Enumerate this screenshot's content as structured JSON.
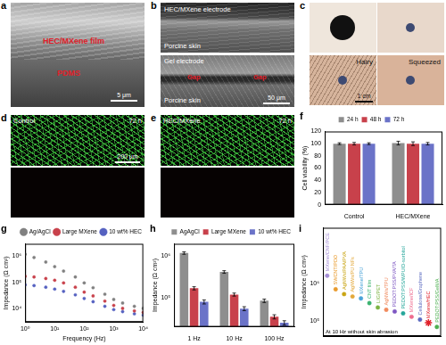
{
  "images": [
    {
      "panel": "a",
      "labels": [
        "HEC/MXene film",
        "PDMS"
      ],
      "scale_bar": "5 μm"
    },
    {
      "panel": "b",
      "labels": [
        "HEC/MXene electrode",
        "Porcine skin",
        "Gel electrode",
        "Gap",
        "Gap",
        "Porcine skin"
      ],
      "scale_bar": "50 μm"
    },
    {
      "panel": "c",
      "labels": [
        "Hairy",
        "Squeezed"
      ],
      "scale_bar": "1 cm"
    },
    {
      "panel": "d",
      "labels": [
        "Control",
        "72 h"
      ],
      "scale_bar": "200 μm"
    },
    {
      "panel": "e",
      "labels": [
        "HEC/MXene",
        "72 h"
      ]
    }
  ],
  "chart_data": [
    {
      "panel": "f",
      "type": "bar",
      "categories": [
        "Control",
        "HEC/MXene"
      ],
      "y_label": "Cell viability (%)",
      "ylim": [
        0,
        120
      ],
      "yticks": [
        0,
        20,
        40,
        60,
        80,
        100,
        120
      ],
      "legend": "top",
      "series": [
        {
          "name": "24 h",
          "color": "#8e8e8e",
          "values": [
            100,
            101
          ],
          "errors": [
            1.5,
            3
          ]
        },
        {
          "name": "48 h",
          "color": "#c8414b",
          "values": [
            100,
            100
          ],
          "errors": [
            2,
            3
          ]
        },
        {
          "name": "72 h",
          "color": "#6b73c8",
          "values": [
            100,
            100
          ],
          "errors": [
            1.5,
            2
          ]
        }
      ]
    },
    {
      "panel": "g",
      "type": "scatter",
      "log": true,
      "marker": "circle",
      "x_label": "Frequency (Hz)",
      "y_label": "Impedance (Ω cm²)",
      "xlim": [
        1,
        10000
      ],
      "xticks": [
        {
          "value": 1,
          "label": "10⁰"
        },
        {
          "value": 10,
          "label": "10¹"
        },
        {
          "value": 100,
          "label": "10²"
        },
        {
          "value": 1000,
          "label": "10³"
        },
        {
          "value": 10000,
          "label": "10⁴"
        }
      ],
      "ylim": [
        3000,
        3000000
      ],
      "yticks": [
        {
          "value": 10000,
          "label": "10⁴"
        },
        {
          "value": 100000,
          "label": "10⁵"
        },
        {
          "value": 1000000,
          "label": "10⁶"
        }
      ],
      "legend": "top right",
      "x": [
        1,
        2,
        5,
        10,
        20,
        50,
        100,
        200,
        500,
        1000,
        2000,
        5000,
        10000
      ],
      "series": [
        {
          "name": "Ag/AgCl",
          "color": "#808080",
          "values": [
            1200000,
            900000,
            600000,
            400000,
            270000,
            160000,
            95000,
            62000,
            35000,
            22000,
            16000,
            12000,
            10000
          ]
        },
        {
          "name": "Large MXene",
          "color": "#c8414b",
          "values": [
            170000,
            160000,
            140000,
            120000,
            95000,
            65000,
            42000,
            30000,
            19000,
            13000,
            10000,
            8000,
            7000
          ]
        },
        {
          "name": "10 wt% HEC",
          "color": "#5561c0",
          "values": [
            80000,
            75000,
            65000,
            55000,
            45000,
            33000,
            24000,
            18000,
            12000,
            9000,
            7500,
            6200,
            5500
          ]
        }
      ]
    },
    {
      "panel": "h",
      "type": "bar",
      "log": "y",
      "categories": [
        "1 Hz",
        "10 Hz",
        "100 Hz"
      ],
      "y_label": "Impedance (Ω cm²)",
      "ylim": [
        20000,
        2000000
      ],
      "yticks": [
        {
          "value": 100000,
          "label": "10⁵"
        },
        {
          "value": 1000000,
          "label": "10⁶"
        }
      ],
      "legend": "top right",
      "series": [
        {
          "name": "AgAgCl",
          "color": "#8e8e8e",
          "values": [
            1200000,
            420000,
            85000
          ],
          "errors": [
            80000,
            30000,
            8000
          ]
        },
        {
          "name": "Large MXene",
          "color": "#c8414b",
          "values": [
            170000,
            120000,
            35000
          ],
          "errors": [
            15000,
            10000,
            4000
          ]
        },
        {
          "name": "10 wt% HEC",
          "color": "#6b73c8",
          "values": [
            80000,
            55000,
            25000
          ],
          "errors": [
            9000,
            6000,
            3000
          ]
        }
      ]
    },
    {
      "panel": "i",
      "type": "scatter",
      "log": "y",
      "tick_labels": "y",
      "y_label": "Impedance (Ω cm²)",
      "annotation": "At 10 Hz without skin abrasion",
      "ylim": [
        40000,
        30000000
      ],
      "yticks": [
        {
          "value": 100000,
          "label": "10⁵"
        },
        {
          "value": 1000000,
          "label": "10⁶"
        }
      ],
      "categories": [
        "MXene/CNF/PCE",
        "SWCNT/PDO",
        "AgNWs/PAA/PVA",
        "AgNWs/PU NFs",
        "MXene/TPU",
        "CNT film",
        "LIG/PET",
        "AgNWs/TPU",
        "PEDOT:PSS/PVA/TA",
        "PEDOT:PSS/WPU/D-sorbitol",
        "MXene/ICF",
        "Cellulose/Graphene",
        "MXene/HEC",
        "PEDOT:PSS/GelMA"
      ],
      "series": [
        {
          "marker": "circle",
          "colors": [
            "#a58fd6",
            "#e89a2c",
            "#c9a514",
            "#e3a83a",
            "#4aa3d8",
            "#3cb371",
            "#7cb342",
            "#f08a5d",
            "#7e57c2",
            "#26a69a",
            "#ef6c8f",
            "#5c6bc0",
            null,
            "#4caf50"
          ],
          "values": [
            1600000,
            700000,
            520000,
            450000,
            400000,
            300000,
            230000,
            200000,
            180000,
            160000,
            130000,
            110000,
            null,
            70000
          ]
        },
        {
          "marker": "star",
          "color": "#e0202a",
          "values": [
            null,
            null,
            null,
            null,
            null,
            null,
            null,
            null,
            null,
            null,
            null,
            null,
            90000,
            null
          ]
        }
      ]
    }
  ]
}
